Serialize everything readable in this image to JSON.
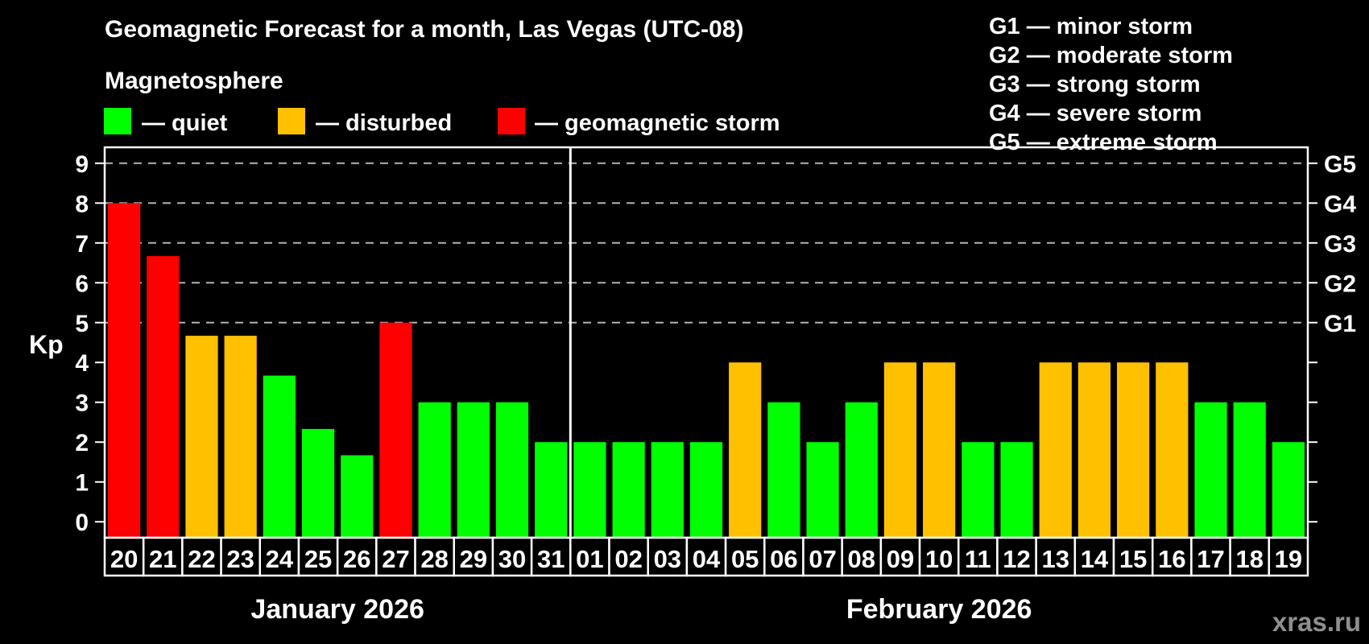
{
  "header": {
    "title": "Geomagnetic Forecast for a month, Las Vegas (UTC-08)",
    "subtitle": "Magnetosphere",
    "legend": [
      {
        "key": "quiet",
        "label": "— quiet"
      },
      {
        "key": "disturbed",
        "label": "— disturbed"
      },
      {
        "key": "storm",
        "label": "— geomagnetic storm"
      }
    ],
    "g_scale_legend": [
      "G1 — minor storm",
      "G2 — moderate storm",
      "G3 — strong storm",
      "G4 — severe storm",
      "G5 — extreme storm"
    ]
  },
  "colors": {
    "quiet": "#00ff00",
    "disturbed": "#ffc000",
    "storm": "#ff0000",
    "background": "#000000",
    "grid": "#b3b3b3",
    "axis": "#ffffff",
    "watermark": "#8f8f8f"
  },
  "y_axis": {
    "label": "Kp",
    "ticks": [
      0,
      1,
      2,
      3,
      4,
      5,
      6,
      7,
      8,
      9
    ]
  },
  "right_axis": {
    "labels": [
      {
        "text": "G1",
        "kp": 5
      },
      {
        "text": "G2",
        "kp": 6
      },
      {
        "text": "G3",
        "kp": 7
      },
      {
        "text": "G4",
        "kp": 8
      },
      {
        "text": "G5",
        "kp": 9
      }
    ]
  },
  "watermark": "xras.ru",
  "chart_data": {
    "type": "bar",
    "title": "Geomagnetic Forecast for a month, Las Vegas (UTC-08)",
    "ylabel": "Kp",
    "ylim": [
      -0.4,
      9.4
    ],
    "gridlines_at": [
      5,
      6,
      7,
      8,
      9
    ],
    "legend_position": "top-left",
    "months": [
      {
        "label": "January 2026",
        "days": [
          {
            "day": "20",
            "kp": 8.0,
            "status": "storm"
          },
          {
            "day": "21",
            "kp": 6.67,
            "status": "storm"
          },
          {
            "day": "22",
            "kp": 4.67,
            "status": "disturbed"
          },
          {
            "day": "23",
            "kp": 4.67,
            "status": "disturbed"
          },
          {
            "day": "24",
            "kp": 3.67,
            "status": "quiet"
          },
          {
            "day": "25",
            "kp": 2.33,
            "status": "quiet"
          },
          {
            "day": "26",
            "kp": 1.67,
            "status": "quiet"
          },
          {
            "day": "27",
            "kp": 5.0,
            "status": "storm"
          },
          {
            "day": "28",
            "kp": 3.0,
            "status": "quiet"
          },
          {
            "day": "29",
            "kp": 3.0,
            "status": "quiet"
          },
          {
            "day": "30",
            "kp": 3.0,
            "status": "quiet"
          },
          {
            "day": "31",
            "kp": 2.0,
            "status": "quiet"
          }
        ]
      },
      {
        "label": "February 2026",
        "days": [
          {
            "day": "01",
            "kp": 2.0,
            "status": "quiet"
          },
          {
            "day": "02",
            "kp": 2.0,
            "status": "quiet"
          },
          {
            "day": "03",
            "kp": 2.0,
            "status": "quiet"
          },
          {
            "day": "04",
            "kp": 2.0,
            "status": "quiet"
          },
          {
            "day": "05",
            "kp": 4.0,
            "status": "disturbed"
          },
          {
            "day": "06",
            "kp": 3.0,
            "status": "quiet"
          },
          {
            "day": "07",
            "kp": 2.0,
            "status": "quiet"
          },
          {
            "day": "08",
            "kp": 3.0,
            "status": "quiet"
          },
          {
            "day": "09",
            "kp": 4.0,
            "status": "disturbed"
          },
          {
            "day": "10",
            "kp": 4.0,
            "status": "disturbed"
          },
          {
            "day": "11",
            "kp": 2.0,
            "status": "quiet"
          },
          {
            "day": "12",
            "kp": 2.0,
            "status": "quiet"
          },
          {
            "day": "13",
            "kp": 4.0,
            "status": "disturbed"
          },
          {
            "day": "14",
            "kp": 4.0,
            "status": "disturbed"
          },
          {
            "day": "15",
            "kp": 4.0,
            "status": "disturbed"
          },
          {
            "day": "16",
            "kp": 4.0,
            "status": "disturbed"
          },
          {
            "day": "17",
            "kp": 3.0,
            "status": "quiet"
          },
          {
            "day": "18",
            "kp": 3.0,
            "status": "quiet"
          },
          {
            "day": "19",
            "kp": 2.0,
            "status": "quiet"
          }
        ]
      }
    ]
  }
}
